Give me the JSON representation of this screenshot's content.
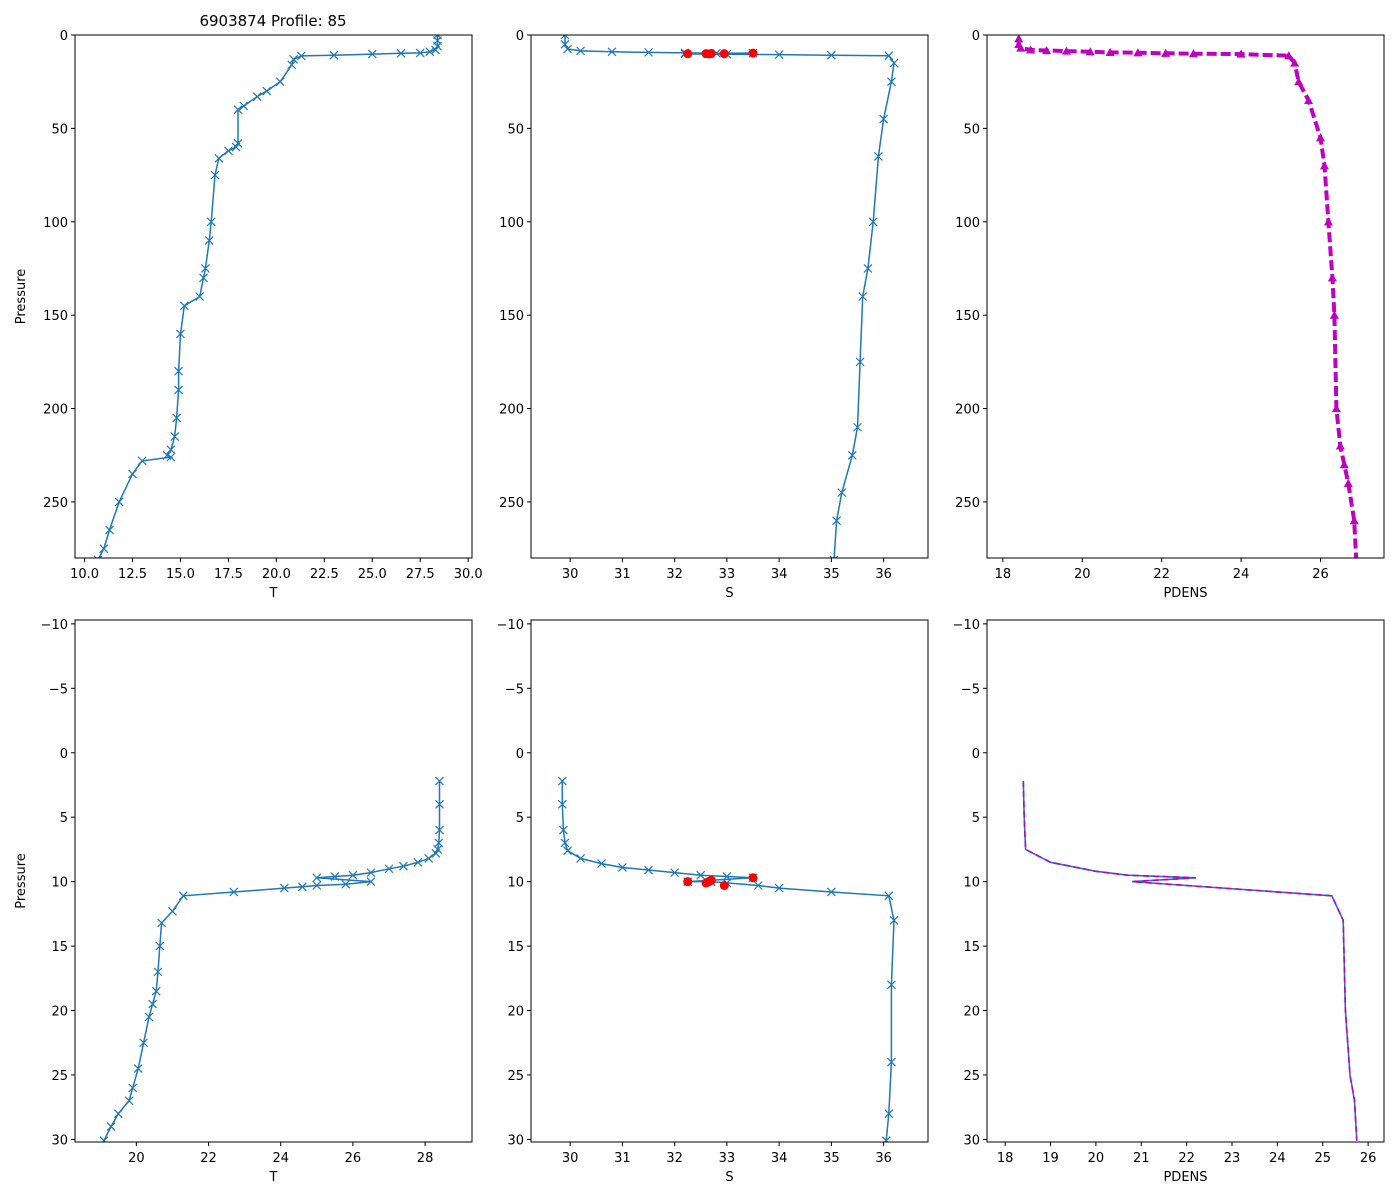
{
  "figure": {
    "title": "6903874 Profile: 85",
    "colors": {
      "line": "#1f77b4",
      "flag": "#ff0000",
      "density": "#bf00bf",
      "frame": "#000000"
    }
  },
  "chart_data": [
    {
      "id": "T-full",
      "type": "line",
      "title": "6903874 Profile: 85",
      "xlabel": "T",
      "ylabel": "Pressure",
      "xlim": [
        9.5,
        30.2
      ],
      "ylim": [
        280,
        0
      ],
      "y_inverted": true,
      "xticks": [
        10.0,
        12.5,
        15.0,
        17.5,
        20.0,
        22.5,
        25.0,
        27.5,
        30.0
      ],
      "xtick_labels": [
        "10.0",
        "12.5",
        "15.0",
        "17.5",
        "20.0",
        "22.5",
        "25.0",
        "27.5",
        "30.0"
      ],
      "yticks": [
        0,
        50,
        100,
        150,
        200,
        250
      ],
      "ytick_labels": [
        "0",
        "50",
        "100",
        "150",
        "200",
        "250"
      ],
      "series": [
        {
          "name": "T",
          "marker": "x",
          "color": "#1f77b4",
          "x": [
            28.4,
            28.4,
            28.4,
            28.3,
            28.0,
            27.5,
            26.5,
            25.0,
            23.0,
            21.3,
            20.9,
            20.8,
            20.2,
            19.5,
            19.0,
            18.3,
            18.0,
            18.0,
            17.9,
            17.5,
            17.0,
            16.8,
            16.6,
            16.5,
            16.3,
            16.2,
            16.0,
            15.2,
            15.0,
            14.9,
            14.9,
            14.8,
            14.7,
            14.5,
            14.3,
            14.5,
            13.0,
            12.5,
            11.8,
            11.3,
            11.0,
            10.7
          ],
          "y": [
            0,
            3,
            6,
            8,
            9,
            9.6,
            9.8,
            10.2,
            10.8,
            11.2,
            13,
            16,
            25,
            30,
            33,
            38,
            40,
            58,
            60,
            62,
            66,
            75,
            100,
            110,
            125,
            130,
            140,
            145,
            160,
            180,
            190,
            205,
            215,
            222,
            225,
            226,
            228,
            235,
            250,
            265,
            275,
            281
          ]
        }
      ]
    },
    {
      "id": "S-full",
      "type": "line",
      "xlabel": "S",
      "ylabel": "",
      "xlim": [
        29.25,
        36.85
      ],
      "ylim": [
        280,
        0
      ],
      "y_inverted": true,
      "xticks": [
        30,
        31,
        32,
        33,
        34,
        35,
        36
      ],
      "xtick_labels": [
        "30",
        "31",
        "32",
        "33",
        "34",
        "35",
        "36"
      ],
      "yticks": [
        0,
        50,
        100,
        150,
        200,
        250
      ],
      "ytick_labels": [
        "0",
        "50",
        "100",
        "150",
        "200",
        "250"
      ],
      "series": [
        {
          "name": "S",
          "marker": "x",
          "color": "#1f77b4",
          "x": [
            29.9,
            29.9,
            29.95,
            30.2,
            30.8,
            31.5,
            32.2,
            32.8,
            33.5,
            32.2,
            33.0,
            34.0,
            35.0,
            36.1,
            36.2,
            36.15,
            36.0,
            35.9,
            35.8,
            35.7,
            35.6,
            35.55,
            35.5,
            35.4,
            35.2,
            35.1,
            35.05
          ],
          "y": [
            0,
            5,
            7.5,
            8.5,
            9,
            9.3,
            9.6,
            9.8,
            9.7,
            10.1,
            10.3,
            10.5,
            10.8,
            11.1,
            15,
            25,
            45,
            65,
            100,
            125,
            140,
            175,
            210,
            225,
            245,
            260,
            281
          ]
        },
        {
          "name": "flagged S",
          "marker": "o",
          "color": "#ff0000",
          "x": [
            32.25,
            32.6,
            32.65,
            32.7,
            32.95,
            33.5
          ],
          "y": [
            10.0,
            10.0,
            10.1,
            9.9,
            10.0,
            9.7
          ]
        }
      ]
    },
    {
      "id": "PDENS-full",
      "type": "line",
      "xlabel": "PDENS",
      "ylabel": "",
      "xlim": [
        17.6,
        27.6
      ],
      "ylim": [
        280,
        0
      ],
      "y_inverted": true,
      "xticks": [
        18,
        20,
        22,
        24,
        26
      ],
      "xtick_labels": [
        "18",
        "20",
        "22",
        "24",
        "26"
      ],
      "yticks": [
        0,
        50,
        100,
        150,
        200,
        250
      ],
      "ytick_labels": [
        "0",
        "50",
        "100",
        "150",
        "200",
        "250"
      ],
      "series": [
        {
          "name": "PDENS",
          "marker": "^",
          "color": "#bf00bf",
          "x": [
            18.4,
            18.4,
            18.45,
            18.7,
            19.1,
            19.6,
            20.2,
            20.7,
            21.4,
            22.1,
            22.8,
            24.0,
            25.2,
            25.35,
            25.45,
            25.7,
            26.0,
            26.1,
            26.2,
            26.3,
            26.35,
            26.4,
            26.5,
            26.6,
            26.7,
            26.85,
            26.9
          ],
          "y": [
            2,
            5,
            7,
            8,
            8.3,
            8.6,
            9,
            9.3,
            9.5,
            9.8,
            10,
            10.2,
            11.1,
            15,
            25,
            35,
            55,
            70,
            100,
            130,
            150,
            200,
            220,
            230,
            240,
            260,
            281
          ]
        }
      ]
    },
    {
      "id": "T-zoom",
      "type": "line",
      "xlabel": "T",
      "ylabel": "Pressure",
      "xlim": [
        18.3,
        29.3
      ],
      "ylim": [
        30.2,
        -10.3
      ],
      "y_inverted": true,
      "xticks": [
        20,
        22,
        24,
        26,
        28
      ],
      "xtick_labels": [
        "20",
        "22",
        "24",
        "26",
        "28"
      ],
      "yticks": [
        -10,
        -5,
        0,
        5,
        10,
        15,
        20,
        25,
        30
      ],
      "ytick_labels": [
        "−10",
        "−5",
        "0",
        "5",
        "10",
        "15",
        "20",
        "25",
        "30"
      ],
      "series": [
        {
          "name": "T",
          "marker": "x",
          "color": "#1f77b4",
          "x": [
            28.4,
            28.4,
            28.4,
            28.38,
            28.35,
            28.3,
            28.1,
            27.8,
            27.4,
            27.0,
            26.5,
            26.0,
            25.5,
            25.0,
            26.5,
            25.8,
            25.0,
            24.6,
            24.1,
            22.7,
            21.3,
            21.0,
            20.7,
            20.65,
            20.6,
            20.55,
            20.45,
            20.35,
            20.2,
            20.05,
            19.9,
            19.8,
            19.5,
            19.3,
            19.1
          ],
          "y": [
            2.2,
            4,
            6,
            7,
            7.5,
            7.8,
            8.2,
            8.5,
            8.8,
            9.0,
            9.3,
            9.5,
            9.6,
            9.7,
            10.0,
            10.2,
            10.3,
            10.4,
            10.5,
            10.8,
            11.1,
            12.3,
            13.2,
            15,
            17,
            18.5,
            19.5,
            20.5,
            22.5,
            24.5,
            26,
            27,
            28,
            29,
            30.1
          ]
        }
      ]
    },
    {
      "id": "S-zoom",
      "type": "line",
      "xlabel": "S",
      "ylabel": "",
      "xlim": [
        29.25,
        36.85
      ],
      "ylim": [
        30.2,
        -10.3
      ],
      "y_inverted": true,
      "xticks": [
        30,
        31,
        32,
        33,
        34,
        35,
        36
      ],
      "xtick_labels": [
        "30",
        "31",
        "32",
        "33",
        "34",
        "35",
        "36"
      ],
      "yticks": [
        -10,
        -5,
        0,
        5,
        10,
        15,
        20,
        25,
        30
      ],
      "ytick_labels": [
        "−10",
        "−5",
        "0",
        "5",
        "10",
        "15",
        "20",
        "25",
        "30"
      ],
      "series": [
        {
          "name": "S",
          "marker": "x",
          "color": "#1f77b4",
          "x": [
            29.85,
            29.85,
            29.87,
            29.9,
            29.95,
            30.2,
            30.6,
            31.0,
            31.5,
            32.0,
            32.5,
            33.0,
            33.5,
            32.25,
            32.7,
            33.0,
            33.6,
            34.0,
            35.0,
            36.1,
            36.2,
            36.15,
            36.15,
            36.1,
            36.05
          ],
          "y": [
            2.2,
            4,
            6,
            7,
            7.6,
            8.2,
            8.6,
            8.9,
            9.1,
            9.3,
            9.5,
            9.6,
            9.7,
            10.0,
            10.0,
            10.1,
            10.3,
            10.5,
            10.8,
            11.1,
            13,
            18,
            24,
            28,
            30.1
          ]
        },
        {
          "name": "flagged S",
          "marker": "o",
          "color": "#ff0000",
          "x": [
            32.25,
            32.6,
            32.65,
            32.7,
            32.95,
            33.5
          ],
          "y": [
            10.0,
            10.1,
            10.0,
            9.9,
            10.3,
            9.7
          ]
        }
      ]
    },
    {
      "id": "PDENS-zoom",
      "type": "line",
      "xlabel": "PDENS",
      "ylabel": "",
      "xlim": [
        17.6,
        26.35
      ],
      "ylim": [
        30.2,
        -10.3
      ],
      "y_inverted": true,
      "xticks": [
        18,
        19,
        20,
        21,
        22,
        23,
        24,
        25,
        26
      ],
      "xtick_labels": [
        "18",
        "19",
        "20",
        "21",
        "22",
        "23",
        "24",
        "25",
        "26"
      ],
      "yticks": [
        -10,
        -5,
        0,
        5,
        10,
        15,
        20,
        25,
        30
      ],
      "ytick_labels": [
        "−10",
        "−5",
        "0",
        "5",
        "10",
        "15",
        "20",
        "25",
        "30"
      ],
      "series": [
        {
          "name": "PDENS",
          "marker": "dashed",
          "color": "#bf00bf",
          "x": [
            18.4,
            18.42,
            18.45,
            19.0,
            20.0,
            20.7,
            22.2,
            20.8,
            22.0,
            25.2,
            25.45,
            25.5,
            25.6,
            25.7,
            25.75
          ],
          "y": [
            2.2,
            5,
            7.5,
            8.5,
            9.2,
            9.5,
            9.7,
            10.0,
            10.3,
            11.1,
            13,
            20,
            25,
            27,
            30.1
          ]
        }
      ]
    }
  ]
}
